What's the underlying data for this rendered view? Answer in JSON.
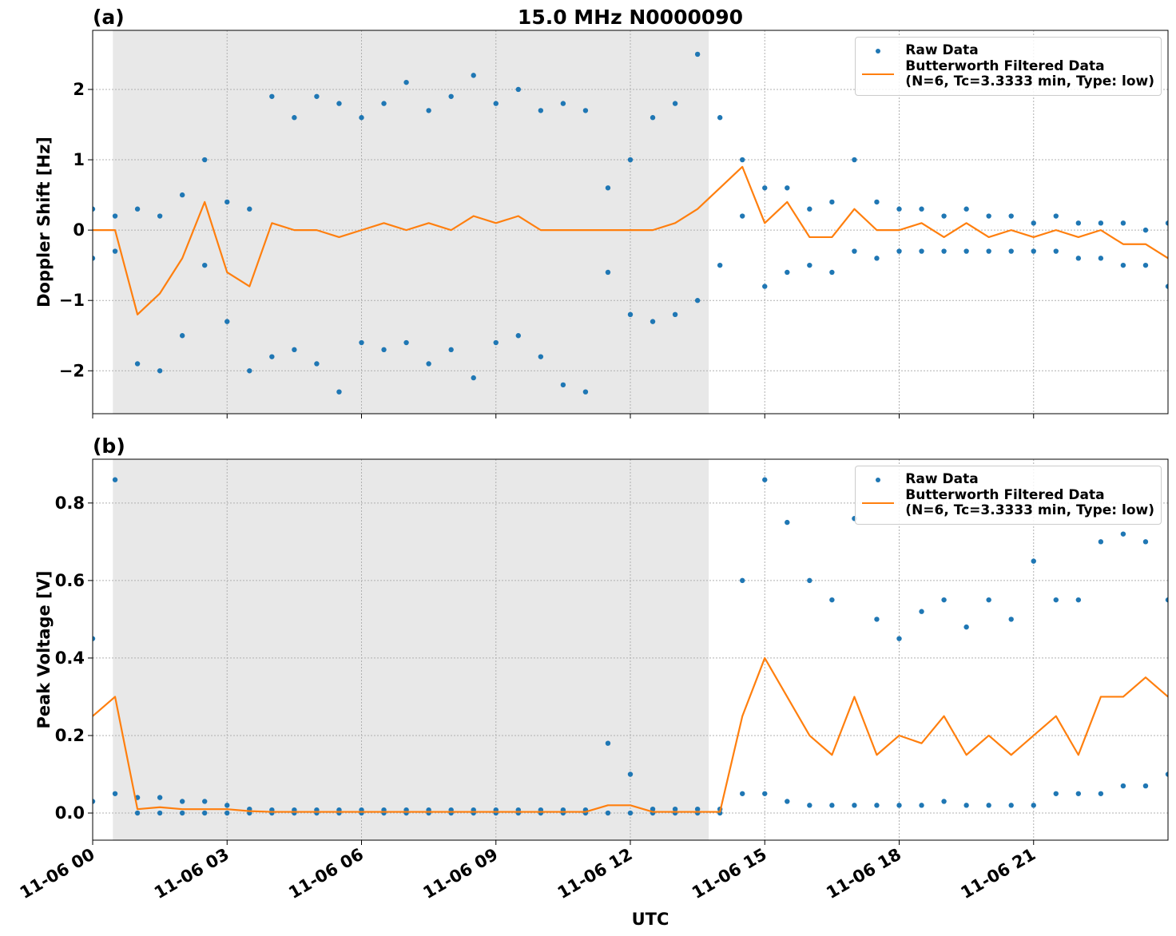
{
  "chart_data": [
    {
      "type": "scatter-line",
      "title": "15.0 MHz N0000090",
      "panel_label": "(a)",
      "ylabel": "Doppler Shift [Hz]",
      "xlim": [
        0,
        24
      ],
      "xticks": [
        0,
        3,
        6,
        9,
        12,
        15,
        18,
        21
      ],
      "ylim": [
        -2.61,
        2.84
      ],
      "yticks": [
        {
          "value": -2,
          "label": "−2"
        },
        {
          "value": -1,
          "label": "−1"
        },
        0,
        1,
        2
      ],
      "grid": true,
      "legend_loc": "upper right",
      "shaded_span": [
        0.45,
        13.75
      ],
      "shaded_color": "#e8e8e8",
      "series": [
        {
          "name": "Raw Data",
          "kind": "scatter",
          "color": "#1f77b4",
          "x": [
            0,
            0.5,
            1,
            1.5,
            2,
            2.5,
            3,
            3.5,
            4,
            4.5,
            5,
            5.5,
            6,
            6.5,
            7,
            7.5,
            8,
            8.5,
            9,
            9.5,
            10,
            10.5,
            11,
            11.5,
            12,
            12.5,
            13,
            13.5,
            14,
            14.5,
            15,
            15.5,
            16,
            16.5,
            17,
            17.5,
            18,
            18.5,
            19,
            19.5,
            20,
            20.5,
            21,
            21.5,
            22,
            22.5,
            23,
            23.5,
            24,
            0,
            0.5,
            1,
            1.5,
            2,
            2.5,
            3,
            3.5,
            4,
            4.5,
            5,
            5.5,
            6,
            6.5,
            7,
            7.5,
            8,
            8.5,
            9,
            9.5,
            10,
            10.5,
            11,
            11.5,
            12,
            12.5,
            13,
            13.5,
            14,
            14.5,
            15,
            15.5,
            16,
            16.5,
            17,
            17.5,
            18,
            18.5,
            19,
            19.5,
            20,
            20.5,
            21,
            21.5,
            22,
            22.5,
            23,
            23.5,
            24
          ],
          "values": [
            0.3,
            0.2,
            0.3,
            0.2,
            0.5,
            1.0,
            0.4,
            0.3,
            1.9,
            1.6,
            1.9,
            1.8,
            1.6,
            1.8,
            2.1,
            1.7,
            1.9,
            2.2,
            1.8,
            2.0,
            1.7,
            1.8,
            1.7,
            0.6,
            1.0,
            1.6,
            1.8,
            2.5,
            1.6,
            1.0,
            0.6,
            0.6,
            0.3,
            0.4,
            1.0,
            0.4,
            0.3,
            0.3,
            0.2,
            0.3,
            0.2,
            0.2,
            0.1,
            0.2,
            0.1,
            0.1,
            0.1,
            0.0,
            0.1,
            -0.4,
            -0.3,
            -1.9,
            -2.0,
            -1.5,
            -0.5,
            -1.3,
            -2.0,
            -1.8,
            -1.7,
            -1.9,
            -2.3,
            -1.6,
            -1.7,
            -1.6,
            -1.9,
            -1.7,
            -2.1,
            -1.6,
            -1.5,
            -1.8,
            -2.2,
            -2.3,
            -0.6,
            -1.2,
            -1.3,
            -1.2,
            -1.0,
            -0.5,
            0.2,
            -0.8,
            -0.6,
            -0.5,
            -0.6,
            -0.3,
            -0.4,
            -0.3,
            -0.3,
            -0.3,
            -0.3,
            -0.3,
            -0.3,
            -0.3,
            -0.3,
            -0.4,
            -0.4,
            -0.5,
            -0.5,
            -0.8
          ]
        },
        {
          "name": "Butterworth Filtered Data\n(N=6, Tc=3.3333 min, Type: low)",
          "kind": "line",
          "color": "#ff7f0e",
          "x": [
            0,
            0.5,
            1,
            1.5,
            2,
            2.5,
            3,
            3.5,
            4,
            4.5,
            5,
            5.5,
            6,
            6.5,
            7,
            7.5,
            8,
            8.5,
            9,
            9.5,
            10,
            10.5,
            11,
            11.5,
            12,
            12.5,
            13,
            13.5,
            14,
            14.5,
            15,
            15.5,
            16,
            16.5,
            17,
            17.5,
            18,
            18.5,
            19,
            19.5,
            20,
            20.5,
            21,
            21.5,
            22,
            22.5,
            23,
            23.5,
            24
          ],
          "values": [
            0.0,
            0.0,
            -1.2,
            -0.9,
            -0.4,
            0.4,
            -0.6,
            -0.8,
            0.1,
            0.0,
            0.0,
            -0.1,
            0.0,
            0.1,
            0.0,
            0.1,
            0.0,
            0.2,
            0.1,
            0.2,
            0.0,
            0.0,
            0.0,
            0.0,
            0.0,
            0.0,
            0.1,
            0.3,
            0.6,
            0.9,
            0.1,
            0.4,
            -0.1,
            -0.1,
            0.3,
            0.0,
            0.0,
            0.1,
            -0.1,
            0.1,
            -0.1,
            0.0,
            -0.1,
            0.0,
            -0.1,
            0.0,
            -0.2,
            -0.2,
            -0.4
          ]
        }
      ]
    },
    {
      "type": "scatter-line",
      "panel_label": "(b)",
      "ylabel": "Peak Voltage [V]",
      "xlabel": "UTC",
      "xlim": [
        0,
        24
      ],
      "xticks": [
        {
          "value": 0,
          "label": "11-06 00"
        },
        {
          "value": 3,
          "label": "11-06 03"
        },
        {
          "value": 6,
          "label": "11-06 06"
        },
        {
          "value": 9,
          "label": "11-06 09"
        },
        {
          "value": 12,
          "label": "11-06 12"
        },
        {
          "value": 15,
          "label": "11-06 15"
        },
        {
          "value": 18,
          "label": "11-06 18"
        },
        {
          "value": 21,
          "label": "11-06 21"
        }
      ],
      "ylim": [
        -0.07,
        0.913
      ],
      "yticks": [
        {
          "value": 0,
          "label": "0.0"
        },
        0.2,
        0.4,
        0.6,
        0.8
      ],
      "grid": true,
      "legend_loc": "upper right",
      "shaded_span": [
        0.45,
        13.75
      ],
      "shaded_color": "#e8e8e8",
      "series": [
        {
          "name": "Raw Data",
          "kind": "scatter",
          "color": "#1f77b4",
          "x": [
            0,
            0.5,
            1,
            1.5,
            2,
            2.5,
            3,
            3.5,
            4,
            4.5,
            5,
            5.5,
            6,
            6.5,
            7,
            7.5,
            8,
            8.5,
            9,
            9.5,
            10,
            10.5,
            11,
            11.5,
            12,
            12.5,
            13,
            13.5,
            14,
            14.5,
            15,
            15.5,
            16,
            16.5,
            17,
            17.5,
            18,
            18.5,
            19,
            19.5,
            20,
            20.5,
            21,
            21.5,
            22,
            22.5,
            23,
            23.5,
            24,
            0,
            0.5,
            1,
            1.5,
            2,
            2.5,
            3,
            3.5,
            4,
            4.5,
            5,
            5.5,
            6,
            6.5,
            7,
            7.5,
            8,
            8.5,
            9,
            9.5,
            10,
            10.5,
            11,
            11.5,
            12,
            12.5,
            13,
            13.5,
            14,
            14.5,
            15,
            15.5,
            16,
            16.5,
            17,
            17.5,
            18,
            18.5,
            19,
            19.5,
            20,
            20.5,
            21,
            21.5,
            22,
            22.5,
            23,
            23.5,
            24
          ],
          "values": [
            0.45,
            0.86,
            0.04,
            0.04,
            0.03,
            0.03,
            0.02,
            0.01,
            0.008,
            0.008,
            0.008,
            0.008,
            0.008,
            0.008,
            0.008,
            0.008,
            0.008,
            0.008,
            0.008,
            0.008,
            0.008,
            0.008,
            0.008,
            0.18,
            0.1,
            0.01,
            0.01,
            0.01,
            0.01,
            0.6,
            0.86,
            0.75,
            0.6,
            0.55,
            0.76,
            0.5,
            0.45,
            0.52,
            0.55,
            0.48,
            0.55,
            0.5,
            0.65,
            0.55,
            0.55,
            0.7,
            0.72,
            0.7,
            0.55,
            0.03,
            0.05,
            0.0,
            0.0,
            0.0,
            0.0,
            0.0,
            0.0,
            0.0,
            0.0,
            0.0,
            0.0,
            0.0,
            0.0,
            0.0,
            0.0,
            0.0,
            0.0,
            0.0,
            0.0,
            0.0,
            0.0,
            0.0,
            0.0,
            0.0,
            0.0,
            0.0,
            0.0,
            0.0,
            0.05,
            0.05,
            0.03,
            0.02,
            0.02,
            0.02,
            0.02,
            0.02,
            0.02,
            0.03,
            0.02,
            0.02,
            0.02,
            0.02,
            0.05,
            0.05,
            0.05,
            0.07,
            0.07,
            0.1
          ]
        },
        {
          "name": "Butterworth Filtered Data\n(N=6, Tc=3.3333 min, Type: low)",
          "kind": "line",
          "color": "#ff7f0e",
          "x": [
            0,
            0.5,
            1,
            1.5,
            2,
            2.5,
            3,
            3.5,
            4,
            4.5,
            5,
            5.5,
            6,
            6.5,
            7,
            7.5,
            8,
            8.5,
            9,
            9.5,
            10,
            10.5,
            11,
            11.5,
            12,
            12.5,
            13,
            13.5,
            14,
            14.5,
            15,
            15.5,
            16,
            16.5,
            17,
            17.5,
            18,
            18.5,
            19,
            19.5,
            20,
            20.5,
            21,
            21.5,
            22,
            22.5,
            23,
            23.5,
            24
          ],
          "values": [
            0.25,
            0.3,
            0.01,
            0.015,
            0.01,
            0.01,
            0.01,
            0.005,
            0.003,
            0.003,
            0.003,
            0.003,
            0.003,
            0.003,
            0.003,
            0.003,
            0.003,
            0.003,
            0.003,
            0.003,
            0.003,
            0.003,
            0.003,
            0.02,
            0.02,
            0.003,
            0.003,
            0.003,
            0.003,
            0.25,
            0.4,
            0.3,
            0.2,
            0.15,
            0.3,
            0.15,
            0.2,
            0.18,
            0.25,
            0.15,
            0.2,
            0.15,
            0.2,
            0.25,
            0.15,
            0.3,
            0.3,
            0.35,
            0.3
          ]
        }
      ]
    }
  ]
}
